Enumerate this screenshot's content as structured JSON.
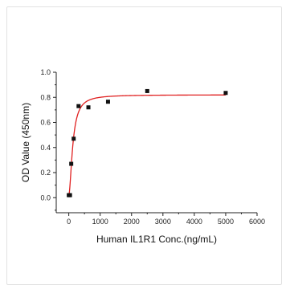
{
  "chart_data": {
    "type": "scatter",
    "title": "",
    "xlabel": "Human IL1R1 Conc.(ng/mL)",
    "ylabel": "OD Value (450nm)",
    "xlim": [
      -400,
      6000
    ],
    "ylim": [
      -0.12,
      1.0
    ],
    "x_ticks": [
      "0",
      "1000",
      "2000",
      "3000",
      "4000",
      "5000",
      "6000"
    ],
    "y_ticks": [
      "0.0",
      "0.2",
      "0.4",
      "0.6",
      "0.8",
      "1.0"
    ],
    "grid": false,
    "legend": "none",
    "series": [
      {
        "kind": "points",
        "marker": "square",
        "color": "#111111",
        "x": [
          0,
          39,
          78,
          156,
          312,
          625,
          1250,
          2500,
          5000
        ],
        "y": [
          0.02,
          0.02,
          0.27,
          0.47,
          0.73,
          0.72,
          0.765,
          0.85,
          0.835
        ]
      },
      {
        "kind": "fit",
        "color": "#e02020",
        "fit_model": "sigmoid",
        "bottom": 0.02,
        "top": 0.82,
        "ec50": 130,
        "hill": 1.8
      }
    ]
  }
}
